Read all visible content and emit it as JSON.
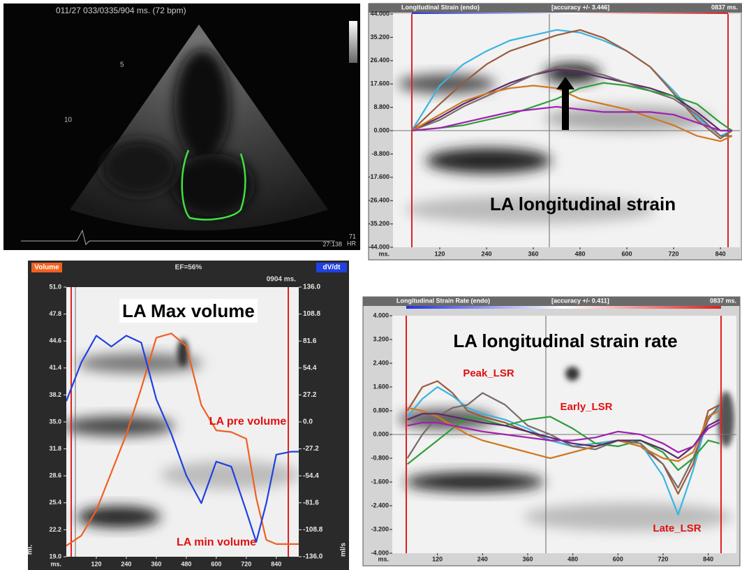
{
  "echo": {
    "header": "011/27  033/0335/904 ms.  (72 bpm)",
    "depth_marks": [
      "5",
      "10"
    ],
    "hr_value": "71",
    "hr_label": "HR",
    "footer": "27:138"
  },
  "chart_data": [
    {
      "type": "line",
      "title": "Longitudinal Strain (endo)",
      "subtitle": "[accuracy +/- 3.446]",
      "time_label": "0837 ms.",
      "xlabel": "ms.",
      "xlim": [
        0,
        890
      ],
      "xticks": [
        120,
        240,
        360,
        480,
        600,
        720,
        840
      ],
      "ylim": [
        -44,
        44
      ],
      "yticks": [
        {
          "value": 44,
          "label": "44.000"
        },
        {
          "value": 35.2,
          "label": "35.200"
        },
        {
          "value": 26.4,
          "label": "26.400"
        },
        {
          "value": 17.6,
          "label": "17.600"
        },
        {
          "value": 8.8,
          "label": "8.800"
        },
        {
          "value": 0,
          "label": "0.000"
        },
        {
          "value": -8.8,
          "label": "-8.800"
        },
        {
          "value": -17.6,
          "label": "-17.600"
        },
        {
          "value": -26.4,
          "label": "-26.400"
        },
        {
          "value": -35.2,
          "label": "-35.200"
        },
        {
          "value": -44,
          "label": "-44.000"
        }
      ],
      "annotations": [
        "LA longitudinal strain"
      ],
      "x": [
        48,
        120,
        180,
        240,
        300,
        360,
        420,
        480,
        540,
        600,
        660,
        720,
        780,
        840,
        870
      ],
      "series": [
        {
          "color": "#3bb4e0",
          "values": [
            0,
            17,
            25,
            30,
            34,
            36,
            38,
            37,
            34,
            30,
            24,
            15,
            5,
            -2,
            0
          ]
        },
        {
          "color": "#9b5a3a",
          "values": [
            0,
            10,
            18,
            25,
            30,
            33,
            36,
            38,
            35,
            30,
            24,
            14,
            4,
            -3,
            0
          ]
        },
        {
          "color": "#5a2a6a",
          "values": [
            0,
            5,
            10,
            14,
            18,
            21,
            23,
            22,
            20,
            18,
            16,
            13,
            7,
            0,
            0
          ]
        },
        {
          "color": "#7a6a6a",
          "values": [
            0,
            4,
            9,
            13,
            17,
            21,
            24,
            23,
            21,
            18,
            15,
            12,
            6,
            -2,
            -2
          ]
        },
        {
          "color": "#2e9e3a",
          "values": [
            0,
            1,
            2,
            4,
            6,
            9,
            12,
            16,
            18,
            17,
            15,
            13,
            10,
            3,
            0
          ]
        },
        {
          "color": "#d07820",
          "values": [
            0,
            6,
            11,
            14,
            16,
            17,
            16,
            12,
            10,
            8,
            5,
            2,
            -2,
            -4,
            -2
          ]
        },
        {
          "color": "#a020b0",
          "values": [
            0,
            1,
            3,
            5,
            7,
            8,
            9,
            8,
            7,
            7,
            7,
            6,
            3,
            0,
            0
          ]
        }
      ]
    },
    {
      "type": "line",
      "title": "EF=56%",
      "time_label": "0904 ms.",
      "xlabel": "ms.",
      "ylabel": "ml.",
      "y2label": "ml/s",
      "xlim": [
        0,
        930
      ],
      "xticks": [
        120,
        240,
        360,
        480,
        600,
        720,
        840
      ],
      "ylim": [
        19,
        51
      ],
      "yticks": [
        {
          "value": 51,
          "label": "51.0"
        },
        47.8,
        44.6,
        41.4,
        38.2,
        {
          "value": 35,
          "label": "35.0"
        },
        31.8,
        28.6,
        25.4,
        22.2,
        {
          "value": 19,
          "label": "19.0"
        }
      ],
      "y2lim": [
        -136,
        136
      ],
      "y2ticks": [
        {
          "value": 136,
          "label": "136.0"
        },
        108.8,
        81.6,
        54.4,
        27.2,
        {
          "value": 0,
          "label": "0.0"
        },
        -27.2,
        -54.4,
        -81.6,
        -108.8,
        {
          "value": -136,
          "label": "-136.0"
        }
      ],
      "annotations": [
        "LA Max volume",
        "LA pre volume",
        "LA min volume"
      ],
      "x": [
        0,
        60,
        120,
        180,
        240,
        300,
        360,
        420,
        480,
        540,
        600,
        660,
        720,
        760,
        800,
        840,
        900,
        930
      ],
      "series": [
        {
          "name": "Volume",
          "color": "#f06020",
          "values": [
            20.3,
            21.5,
            24.5,
            29,
            33.5,
            39,
            45,
            45.5,
            44,
            37,
            34,
            33.8,
            33,
            26,
            21,
            20.5,
            20.5,
            20.5
          ]
        },
        {
          "name": "dV/dt",
          "color": "#2040e0",
          "axis": "y2",
          "values": [
            21,
            60,
            87,
            76,
            87,
            80,
            23,
            -12,
            -54,
            -82,
            -40,
            -45,
            -90,
            -121,
            -82,
            -33,
            -30,
            -30
          ]
        }
      ]
    },
    {
      "type": "line",
      "title": "Longitudinal Strain Rate (endo)",
      "subtitle": "[accuracy +/- 0.411]",
      "time_label": "0837 ms.",
      "xlabel": "ms.",
      "xlim": [
        0,
        915
      ],
      "xticks": [
        120,
        240,
        360,
        480,
        600,
        720,
        840
      ],
      "ylim": [
        -4,
        4
      ],
      "yticks": [
        {
          "value": 4,
          "label": "4.000"
        },
        {
          "value": 3.2,
          "label": "3.200"
        },
        {
          "value": 2.4,
          "label": "2.400"
        },
        {
          "value": 1.6,
          "label": "1.600"
        },
        {
          "value": 0.8,
          "label": "0.800"
        },
        {
          "value": 0,
          "label": "0.000"
        },
        {
          "value": -0.8,
          "label": "-0.800"
        },
        {
          "value": -1.6,
          "label": "-1.600"
        },
        {
          "value": -2.4,
          "label": "-2.400"
        },
        {
          "value": -3.2,
          "label": "-3.200"
        },
        {
          "value": -4,
          "label": "-4.000"
        }
      ],
      "annotations": [
        "LA longitudinal strain rate",
        "Peak_LSR",
        "Early_LSR",
        "Late_LSR"
      ],
      "x": [
        40,
        80,
        120,
        160,
        200,
        240,
        300,
        360,
        420,
        480,
        540,
        600,
        660,
        720,
        760,
        800,
        840,
        870
      ],
      "series": [
        {
          "color": "#9b5a3a",
          "values": [
            0.8,
            1.6,
            1.8,
            1.4,
            0.8,
            0.6,
            0.4,
            0.1,
            -0.2,
            -0.4,
            -0.3,
            -0.2,
            -0.4,
            -1.0,
            -2.0,
            -1.0,
            0.8,
            1.0
          ]
        },
        {
          "color": "#3bb4e0",
          "values": [
            0.6,
            1.2,
            1.6,
            1.3,
            0.9,
            0.7,
            0.5,
            0.2,
            -0.2,
            -0.4,
            -0.3,
            -0.2,
            -0.3,
            -1.4,
            -2.7,
            -1.2,
            0.6,
            0.9
          ]
        },
        {
          "color": "#7a6a6a",
          "values": [
            -0.8,
            0,
            0.6,
            0.9,
            1.0,
            1.4,
            1.0,
            0.3,
            0,
            -0.4,
            -0.5,
            -0.2,
            -0.3,
            -1.0,
            -1.8,
            -0.8,
            0.5,
            1.0
          ]
        },
        {
          "color": "#2e9e3a",
          "values": [
            -1.0,
            -0.6,
            -0.2,
            0.2,
            0.6,
            0.5,
            0.3,
            0.5,
            0.6,
            0.2,
            -0.3,
            -0.4,
            -0.2,
            -0.6,
            -1.2,
            -0.8,
            -0.2,
            -0.3
          ]
        },
        {
          "color": "#d07820",
          "values": [
            0.9,
            0.8,
            0.6,
            0.3,
            0,
            -0.2,
            -0.4,
            -0.6,
            -0.8,
            -0.6,
            -0.4,
            -0.2,
            -0.4,
            -0.8,
            -0.9,
            -0.6,
            0.6,
            0.8
          ]
        },
        {
          "color": "#5a2a6a",
          "values": [
            0.5,
            0.7,
            0.7,
            0.6,
            0.5,
            0.4,
            0.3,
            0.1,
            -0.1,
            -0.3,
            -0.4,
            -0.2,
            -0.2,
            -0.5,
            -0.8,
            -0.4,
            0.3,
            0.5
          ]
        },
        {
          "color": "#a020b0",
          "values": [
            0.3,
            0.4,
            0.4,
            0.3,
            0.2,
            0.1,
            0,
            -0.1,
            -0.2,
            -0.2,
            -0.1,
            0.1,
            0,
            -0.3,
            -0.6,
            -0.4,
            0.2,
            0.4
          ]
        }
      ]
    }
  ]
}
